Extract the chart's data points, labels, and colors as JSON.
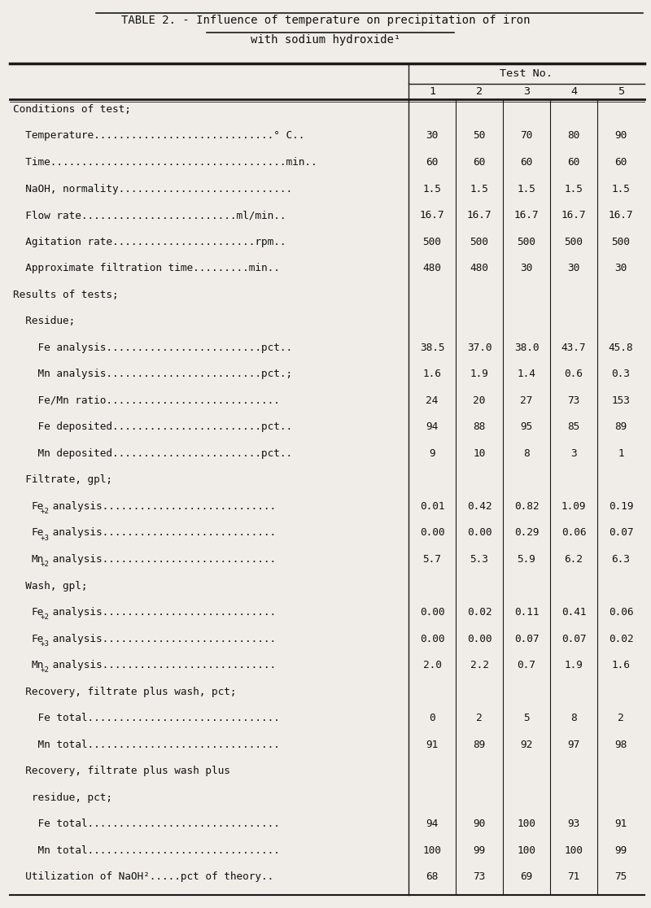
{
  "title_line1": "TABLE 2. - Influence of temperature on precipitation of iron",
  "title_line2": "with sodium hydroxide¹",
  "col_header_label": "Test No.",
  "col_headers": [
    "1",
    "2",
    "3",
    "4",
    "5"
  ],
  "bg_color": "#f0ede8",
  "text_color": "#111111",
  "line_color": "#1a1a1a",
  "font_size": 9.2,
  "title_font_size": 10.0,
  "rows": [
    {
      "label": "Conditions of test;",
      "indent": 0,
      "values": [
        "",
        "",
        "",
        "",
        ""
      ]
    },
    {
      "label": "  Temperature.............................° C..",
      "indent": 1,
      "values": [
        "30",
        "50",
        "70",
        "80",
        "90"
      ]
    },
    {
      "label": "  Time......................................min..",
      "indent": 1,
      "values": [
        "60",
        "60",
        "60",
        "60",
        "60"
      ]
    },
    {
      "label": "  NaOH, normality............................",
      "indent": 1,
      "values": [
        "1.5",
        "1.5",
        "1.5",
        "1.5",
        "1.5"
      ]
    },
    {
      "label": "  Flow rate.........................ml/min..",
      "indent": 1,
      "values": [
        "16.7",
        "16.7",
        "16.7",
        "16.7",
        "16.7"
      ]
    },
    {
      "label": "  Agitation rate.......................rpm..",
      "indent": 1,
      "values": [
        "500",
        "500",
        "500",
        "500",
        "500"
      ]
    },
    {
      "label": "  Approximate filtration time.........min..",
      "indent": 1,
      "values": [
        "480",
        "480",
        "30",
        "30",
        "30"
      ]
    },
    {
      "label": "Results of tests;",
      "indent": 0,
      "values": [
        "",
        "",
        "",
        "",
        ""
      ]
    },
    {
      "label": "  Residue;",
      "indent": 1,
      "values": [
        "",
        "",
        "",
        "",
        ""
      ]
    },
    {
      "label": "    Fe analysis.........................pct..",
      "indent": 2,
      "values": [
        "38.5",
        "37.0",
        "38.0",
        "43.7",
        "45.8"
      ]
    },
    {
      "label": "    Mn analysis.........................pct.;",
      "indent": 2,
      "values": [
        "1.6",
        "1.9",
        "1.4",
        "0.6",
        "0.3"
      ]
    },
    {
      "label": "    Fe/Mn ratio............................",
      "indent": 2,
      "values": [
        "24",
        "20",
        "27",
        "73",
        "153"
      ]
    },
    {
      "label": "    Fe deposited........................pct..",
      "indent": 2,
      "values": [
        "94",
        "88",
        "95",
        "85",
        "89"
      ]
    },
    {
      "label": "    Mn deposited........................pct..",
      "indent": 2,
      "values": [
        "9",
        "10",
        "8",
        "3",
        "1"
      ]
    },
    {
      "label": "  Filtrate, gpl;",
      "indent": 1,
      "values": [
        "",
        "",
        "",
        "",
        ""
      ]
    },
    {
      "label": "    Fe+2 analysis............................",
      "indent": 2,
      "values": [
        "0.01",
        "0.42",
        "0.82",
        "1.09",
        "0.19"
      ],
      "sup": "+2",
      "base": "Fe"
    },
    {
      "label": "    Fe+3 analysis............................",
      "indent": 2,
      "values": [
        "0.00",
        "0.00",
        "0.29",
        "0.06",
        "0.07"
      ],
      "sup": "+3",
      "base": "Fe"
    },
    {
      "label": "    Mn+2 analysis............................",
      "indent": 2,
      "values": [
        "5.7",
        "5.3",
        "5.9",
        "6.2",
        "6.3"
      ],
      "sup": "+2",
      "base": "Mn"
    },
    {
      "label": "  Wash, gpl;",
      "indent": 1,
      "values": [
        "",
        "",
        "",
        "",
        ""
      ]
    },
    {
      "label": "    Fe+2 analysis............................",
      "indent": 2,
      "values": [
        "0.00",
        "0.02",
        "0.11",
        "0.41",
        "0.06"
      ],
      "sup": "+2",
      "base": "Fe"
    },
    {
      "label": "    Fe+3 analysis............................",
      "indent": 2,
      "values": [
        "0.00",
        "0.00",
        "0.07",
        "0.07",
        "0.02"
      ],
      "sup": "+3",
      "base": "Fe"
    },
    {
      "label": "    Mn+2 analysis............................",
      "indent": 2,
      "values": [
        "2.0",
        "2.2",
        "0.7",
        "1.9",
        "1.6"
      ],
      "sup": "+2",
      "base": "Mn"
    },
    {
      "label": "  Recovery, filtrate plus wash, pct;",
      "indent": 1,
      "values": [
        "",
        "",
        "",
        "",
        ""
      ]
    },
    {
      "label": "    Fe total...............................",
      "indent": 2,
      "values": [
        "0",
        "2",
        "5",
        "8",
        "2"
      ]
    },
    {
      "label": "    Mn total...............................",
      "indent": 2,
      "values": [
        "91",
        "89",
        "92",
        "97",
        "98"
      ]
    },
    {
      "label": "  Recovery, filtrate plus wash plus",
      "indent": 1,
      "values": [
        "",
        "",
        "",
        "",
        ""
      ]
    },
    {
      "label": "   residue, pct;",
      "indent": 1,
      "values": [
        "",
        "",
        "",
        "",
        ""
      ]
    },
    {
      "label": "    Fe total...............................",
      "indent": 2,
      "values": [
        "94",
        "90",
        "100",
        "93",
        "91"
      ]
    },
    {
      "label": "    Mn total...............................",
      "indent": 2,
      "values": [
        "100",
        "99",
        "100",
        "100",
        "99"
      ]
    },
    {
      "label": "  Utilization of NaOH².....pct of theory..",
      "indent": 1,
      "values": [
        "68",
        "73",
        "69",
        "71",
        "75"
      ]
    }
  ]
}
